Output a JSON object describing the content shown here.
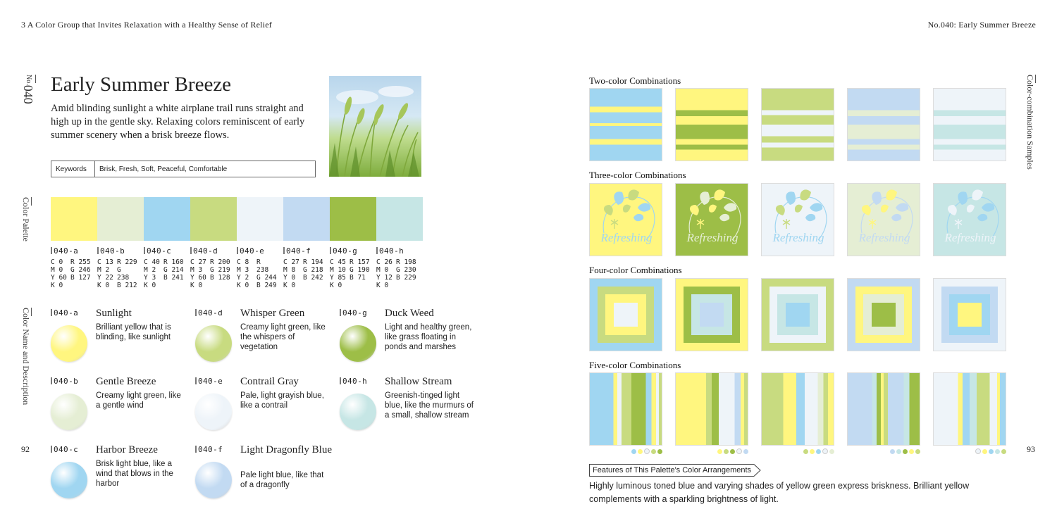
{
  "header": {
    "left": "3  A Color Group that Invites Relaxation with a Healthy Sense of Relief",
    "right": "No.040: Early Summer Breeze"
  },
  "side": {
    "number_label": "No.",
    "number": "040",
    "color_palette": "Color Palette",
    "name_desc": "Color Name and Description",
    "samples": "Color-combination Samples"
  },
  "page_numbers": {
    "left": "92",
    "right": "93"
  },
  "title": "Early Summer Breeze",
  "intro": "Amid blinding sunlight a white airplane trail runs straight and high up in the gentle sky. Relaxing colors reminiscent of early summer scenery when a brisk breeze flows.",
  "keywords": {
    "label": "Keywords",
    "value": "Brisk, Fresh, Soft, Peaceful, Comfortable"
  },
  "palette": [
    {
      "code": "040-a",
      "hex": "#FFF67F",
      "c": "C 0",
      "m": "M 0",
      "y": "Y 60",
      "k": "K 0",
      "r": "R 255",
      "g": "G 246",
      "b": "B 127"
    },
    {
      "code": "040-b",
      "hex": "#E5EED4",
      "c": "C 13",
      "m": "M 2",
      "y": "Y 22",
      "k": "K 0",
      "r": "R 229",
      "g": "G",
      "b": "238",
      "b2": "B 212"
    },
    {
      "code": "040-c",
      "hex": "#A0D6F1",
      "c": "C 40",
      "m": "M 2",
      "y": "Y 3",
      "k": "K 0",
      "r": "R 160",
      "g": "G 214",
      "b": "B 241"
    },
    {
      "code": "040-d",
      "hex": "#C8DB80",
      "c": "C 27",
      "m": "M 3",
      "y": "Y 60",
      "k": "K 0",
      "r": "R 200",
      "g": "G 219",
      "b": "B 128"
    },
    {
      "code": "040-e",
      "hex": "#EEF4F9",
      "c": "C 8",
      "m": "M 3",
      "y": "Y 2",
      "k": "K 0",
      "r": "R",
      "g": "238",
      "b": "G 244",
      "b2": "B 249"
    },
    {
      "code": "040-f",
      "hex": "#C2DAF2",
      "c": "C 27",
      "m": "M 8",
      "y": "Y 0",
      "k": "K 0",
      "r": "R 194",
      "g": "G 218",
      "b": "B 242"
    },
    {
      "code": "040-g",
      "hex": "#9DBE47",
      "c": "C 45",
      "m": "M 10",
      "y": "Y 85",
      "k": "K 0",
      "r": "R 157",
      "g": "G 190",
      "b": "B 71"
    },
    {
      "code": "040-h",
      "hex": "#C6E6E5",
      "c": "C 26",
      "m": "M 0",
      "y": "Y 12",
      "k": "K 0",
      "r": "R 198",
      "g": "G 230",
      "b": "B 229"
    }
  ],
  "colors": [
    {
      "code": "040-a",
      "name": "Sunlight",
      "desc": "Brilliant yellow that is blinding, like sunlight",
      "hex": "#FFF67F"
    },
    {
      "code": "040-b",
      "name": "Gentle Breeze",
      "desc": "Creamy light green, like a gentle wind",
      "hex": "#E5EED4"
    },
    {
      "code": "040-c",
      "name": "Harbor Breeze",
      "desc": "Brisk light blue, like a wind that blows in the harbor",
      "hex": "#A0D6F1"
    },
    {
      "code": "040-d",
      "name": "Whisper Green",
      "desc": "Creamy light green, like the whispers of vegetation",
      "hex": "#C8DB80"
    },
    {
      "code": "040-e",
      "name": "Contrail Gray",
      "desc": "Pale, light grayish blue, like a contrail",
      "hex": "#EEF4F9"
    },
    {
      "code": "040-f",
      "name": "Light Dragonfly Blue",
      "desc": "Pale light blue, like that of a dragonfly",
      "hex": "#C2DAF2"
    },
    {
      "code": "040-g",
      "name": "Duck Weed",
      "desc": "Light and healthy green, like grass floating in ponds and marshes",
      "hex": "#9DBE47"
    },
    {
      "code": "040-h",
      "name": "Shallow Stream",
      "desc": "Greenish-tinged light blue, like the murmurs of a small, shallow stream",
      "hex": "#C6E6E5"
    }
  ],
  "sections": {
    "two": "Two-color Combinations",
    "three": "Three-color Combinations",
    "four": "Four-color Combinations",
    "five": "Five-color Combinations"
  },
  "refreshing_text": "Refreshing",
  "features": {
    "label": "Features of This Palette's Color Arrangements",
    "text": "Highly luminous toned blue and varying shades of yellow green express briskness. Brilliant yellow complements with a sparkling brightness of light."
  }
}
